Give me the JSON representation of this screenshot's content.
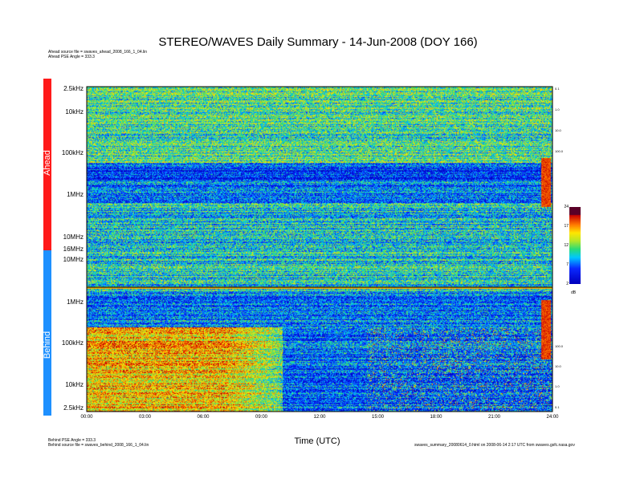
{
  "chart_data": {
    "type": "heatmap",
    "title": "STEREO/WAVES Daily Summary - 14-Jun-2008 (DOY 166)",
    "xlabel": "Time (UTC)",
    "x_ticks": [
      "00:00",
      "03:00",
      "06:00",
      "09:00",
      "12:00",
      "15:00",
      "18:00",
      "21:00",
      "24:00"
    ],
    "xlim": [
      "00:00",
      "24:00"
    ],
    "panels": [
      {
        "name": "Ahead",
        "color": "#ff1a1a",
        "source_text": "Ahead source file = swaves_ahead_2008_166_1_04.lin",
        "angle_text": "Ahead PSE Angle = 333.3",
        "y_ticks": [
          "2.5kHz",
          "10kHz",
          "100kHz",
          "1MHz",
          "10MHz",
          "16MHz"
        ],
        "y_ticks_right": [
          "0.1",
          "1.0",
          "10.0",
          "100.0"
        ]
      },
      {
        "name": "Behind",
        "color": "#1e90ff",
        "source_text": "Behind source file = swaves_behind_2008_166_1_04.lin",
        "angle_text": "Behind PSE Angle = 333.3",
        "y_ticks": [
          "16MHz",
          "10MHz",
          "1MHz",
          "100kHz",
          "10kHz",
          "2.5kHz"
        ],
        "y_ticks_right": [
          "100.0",
          "10.0",
          "1.0",
          "0.1"
        ]
      }
    ],
    "colorbar": {
      "unit": "dB",
      "ticks": [
        "24",
        "17",
        "12",
        "7",
        "2"
      ],
      "range": [
        2,
        24
      ]
    },
    "footer_right": "swaves_summary_20080614_0.html on 2008-06-14 2:17 UTC from swaves.gsfc.nasa.gov"
  }
}
